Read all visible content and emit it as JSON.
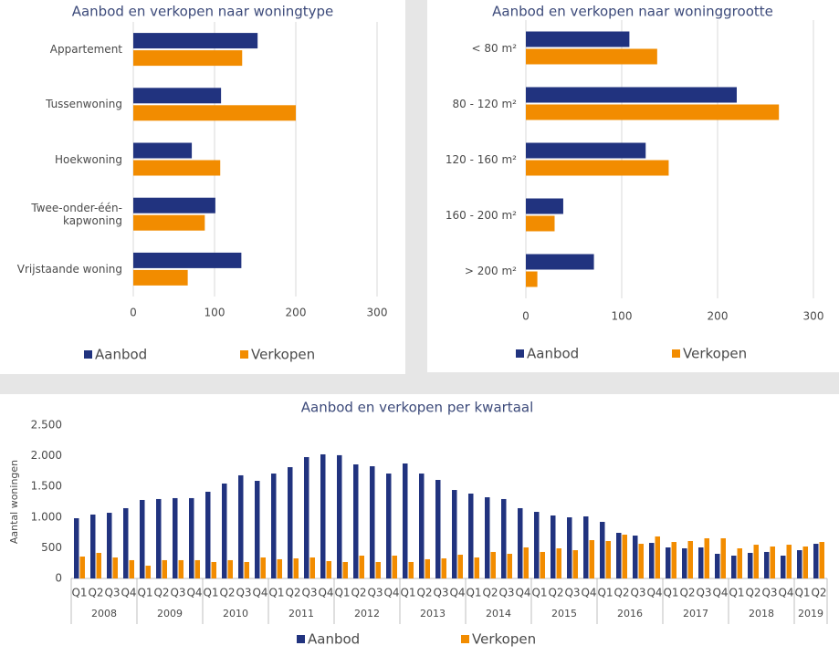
{
  "chart_data": [
    {
      "type": "hbar",
      "title": "Aanbod en verkopen naar woningtype",
      "categories": [
        "Appartement",
        "Tussenwoning",
        "Hoekwoning",
        "Twee-onder-één-kapwoning",
        "Vrijstaande woning"
      ],
      "series": [
        {
          "name": "Aanbod",
          "color": "#21337f",
          "values": [
            153,
            108,
            72,
            101,
            133
          ]
        },
        {
          "name": "Verkopen",
          "color": "#f28c00",
          "values": [
            134,
            200,
            107,
            88,
            67
          ]
        }
      ],
      "xlim": [
        0,
        300
      ],
      "xticks": [
        0,
        100,
        200,
        300
      ],
      "grid": true,
      "legend": "bottom"
    },
    {
      "type": "hbar",
      "title": "Aanbod en verkopen naar woninggrootte",
      "categories": [
        "< 80 m²",
        "80 - 120 m²",
        "120 - 160 m²",
        "160 - 200 m²",
        "> 200 m²"
      ],
      "series": [
        {
          "name": "Aanbod",
          "color": "#21337f",
          "values": [
            108,
            220,
            125,
            39,
            71
          ]
        },
        {
          "name": "Verkopen",
          "color": "#f28c00",
          "values": [
            137,
            264,
            149,
            30,
            12
          ]
        }
      ],
      "xlim": [
        0,
        300
      ],
      "xticks": [
        0,
        100,
        200,
        300
      ],
      "grid": true,
      "legend": "bottom"
    },
    {
      "type": "bar",
      "title": "Aanbod en verkopen per kwartaal",
      "y_label": "Aantal woningen",
      "categories": [
        "Q1",
        "Q2",
        "Q3",
        "Q4",
        "Q1",
        "Q2",
        "Q3",
        "Q4",
        "Q1",
        "Q2",
        "Q3",
        "Q4",
        "Q1",
        "Q2",
        "Q3",
        "Q4",
        "Q1",
        "Q2",
        "Q3",
        "Q4",
        "Q1",
        "Q2",
        "Q3",
        "Q4",
        "Q1",
        "Q2",
        "Q3",
        "Q4",
        "Q1",
        "Q2",
        "Q3",
        "Q4",
        "Q1",
        "Q2",
        "Q3",
        "Q4",
        "Q1",
        "Q2",
        "Q3",
        "Q4",
        "Q1",
        "Q2",
        "Q3",
        "Q4",
        "Q1",
        "Q2"
      ],
      "years": [
        "2008",
        "2009",
        "2010",
        "2011",
        "2012",
        "2013",
        "2014",
        "2015",
        "2016",
        "2017",
        "2018",
        "2019"
      ],
      "series": [
        {
          "name": "Aanbod",
          "color": "#21337f",
          "values": [
            982,
            1042,
            1071,
            1146,
            1280,
            1295,
            1310,
            1310,
            1414,
            1548,
            1682,
            1592,
            1711,
            1815,
            1979,
            2024,
            2010,
            1860,
            1830,
            1711,
            1875,
            1711,
            1607,
            1443,
            1384,
            1324,
            1295,
            1146,
            1086,
            1027,
            997,
            1012,
            923,
            744,
            699,
            580,
            506,
            491,
            506,
            402,
            372,
            417,
            432,
            372,
            461,
            565
          ]
        },
        {
          "name": "Verkopen",
          "color": "#f28c00",
          "values": [
            357,
            417,
            342,
            298,
            208,
            298,
            298,
            298,
            268,
            298,
            268,
            342,
            313,
            327,
            342,
            283,
            268,
            372,
            268,
            372,
            268,
            313,
            327,
            387,
            342,
            432,
            402,
            506,
            432,
            491,
            461,
            625,
            610,
            714,
            565,
            685,
            595,
            610,
            655,
            655,
            491,
            550,
            521,
            550,
            521,
            595
          ]
        }
      ],
      "ylim": [
        0,
        2500
      ],
      "yticks": [
        0,
        500,
        {
          "value": 1000,
          "label": "1.000"
        },
        {
          "value": 1500,
          "label": "1.500"
        },
        {
          "value": 2000,
          "label": "2.000"
        },
        {
          "value": 2500,
          "label": "2.500"
        }
      ],
      "grid": false,
      "legend": "bottom"
    }
  ]
}
